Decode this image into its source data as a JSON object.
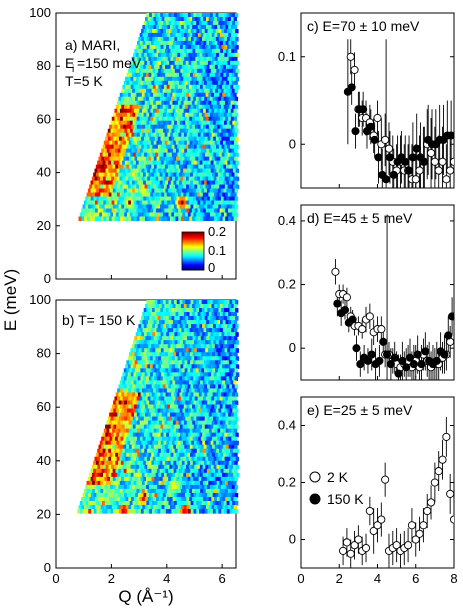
{
  "figure": {
    "shared_ylabel": "E (meV)",
    "shared_xlabel": "Q (Å⁻¹)"
  },
  "chart_data": [
    {
      "id": "a",
      "type": "heatmap",
      "annotations": [
        "a) MARI,",
        "E",
        "i",
        "=150 meV",
        "T=5 K"
      ],
      "xlim": [
        0,
        6.5
      ],
      "ylim": [
        0,
        100
      ],
      "x_ticks": [
        "0",
        "2",
        "4",
        "6"
      ],
      "y_ticks": [
        "0",
        "20",
        "40",
        "60",
        "80",
        "100"
      ],
      "colorbar": {
        "ticks": [
          "0.2",
          "0.1",
          "0"
        ],
        "range": [
          0,
          0.2
        ]
      },
      "colormap": "jet",
      "description_note": "",
      "hot_spots": [
        {
          "q": 1.5,
          "e": 48,
          "v": 0.2
        },
        {
          "q": 1.6,
          "e": 42,
          "v": 0.18
        },
        {
          "q": 2.2,
          "e": 55,
          "v": 0.15
        },
        {
          "q": 2.0,
          "e": 40,
          "v": 0.14
        },
        {
          "q": 3.1,
          "e": 33,
          "v": 0.14
        },
        {
          "q": 4.5,
          "e": 28,
          "v": 0.2
        },
        {
          "q": 1.2,
          "e": 24,
          "v": 0.12
        },
        {
          "q": 2.6,
          "e": 28,
          "v": 0.15
        }
      ]
    },
    {
      "id": "b",
      "type": "heatmap",
      "annotations": [
        "b) T= 150 K"
      ],
      "xlim": [
        0,
        6.5
      ],
      "ylim": [
        0,
        100
      ],
      "x_ticks": [
        "0",
        "2",
        "4",
        "6"
      ],
      "y_ticks": [
        "0",
        "20",
        "40",
        "60",
        "80",
        "100"
      ],
      "colormap": "jet",
      "hot_spots": [
        {
          "q": 1.4,
          "e": 45,
          "v": 0.16
        },
        {
          "q": 2.0,
          "e": 42,
          "v": 0.12
        },
        {
          "q": 2.4,
          "e": 21,
          "v": 0.2
        },
        {
          "q": 3.1,
          "e": 25,
          "v": 0.18
        },
        {
          "q": 4.6,
          "e": 21,
          "v": 0.2
        },
        {
          "q": 4.2,
          "e": 30,
          "v": 0.14
        },
        {
          "q": 1.6,
          "e": 25,
          "v": 0.13
        }
      ]
    },
    {
      "id": "c",
      "type": "scatter",
      "title": "c) E=70 ± 10 meV",
      "xlim": [
        0,
        8
      ],
      "ylim": [
        -0.05,
        0.15
      ],
      "y_ticks": [
        0,
        0.1
      ],
      "y_tick_labels": [
        "0",
        "0.1"
      ],
      "series": [
        {
          "marker": "open",
          "points": [
            [
              2.6,
              0.1
            ],
            [
              2.8,
              0.085
            ],
            [
              3.0,
              0.04
            ],
            [
              3.2,
              0.03
            ],
            [
              3.4,
              0.03
            ],
            [
              3.6,
              0.025
            ],
            [
              3.8,
              0.01
            ],
            [
              4.0,
              0.03
            ],
            [
              4.2,
              0.0
            ],
            [
              4.4,
              0.005
            ],
            [
              4.6,
              -0.005
            ],
            [
              4.8,
              -0.02
            ],
            [
              5.0,
              -0.03
            ],
            [
              5.2,
              -0.02
            ],
            [
              5.4,
              -0.03
            ],
            [
              5.6,
              -0.03
            ],
            [
              5.8,
              -0.04
            ],
            [
              6.0,
              -0.04
            ],
            [
              6.2,
              -0.03
            ],
            [
              6.4,
              -0.02
            ],
            [
              6.6,
              0.0
            ],
            [
              6.8,
              -0.01
            ],
            [
              7.0,
              -0.02
            ],
            [
              7.2,
              -0.03
            ],
            [
              7.4,
              -0.02
            ],
            [
              7.6,
              -0.04
            ],
            [
              7.8,
              -0.03
            ],
            [
              8.0,
              -0.02
            ]
          ],
          "err": [
            0.02,
            0.02,
            0.02,
            0.02,
            0.02,
            0.02,
            0.02,
            0.02,
            0.03,
            0.03,
            0.03,
            0.03,
            0.03,
            0.03,
            0.03,
            0.03,
            0.04,
            0.04,
            0.04,
            0.04,
            0.04,
            0.04,
            0.04,
            0.04,
            0.04,
            0.04,
            0.04,
            0.04
          ]
        },
        {
          "marker": "filled",
          "points": [
            [
              2.45,
              0.06
            ],
            [
              2.65,
              0.065
            ],
            [
              2.85,
              0.015
            ],
            [
              3.05,
              0.04
            ],
            [
              3.25,
              0.04
            ],
            [
              3.45,
              0.015
            ],
            [
              3.65,
              0.02
            ],
            [
              3.85,
              0.005
            ],
            [
              4.05,
              -0.015
            ],
            [
              4.25,
              -0.035
            ],
            [
              4.45,
              -0.04
            ],
            [
              4.65,
              -0.015
            ],
            [
              4.85,
              -0.035
            ],
            [
              5.05,
              -0.02
            ],
            [
              5.25,
              -0.015
            ],
            [
              5.45,
              -0.02
            ],
            [
              5.65,
              -0.03
            ],
            [
              5.85,
              -0.015
            ],
            [
              6.05,
              -0.005
            ],
            [
              6.25,
              -0.015
            ],
            [
              6.45,
              -0.02
            ],
            [
              6.65,
              0.005
            ],
            [
              6.85,
              0.0
            ],
            [
              7.05,
              0.0
            ],
            [
              7.25,
              0.005
            ],
            [
              7.45,
              0.005
            ],
            [
              7.65,
              0.01
            ],
            [
              7.85,
              0.01
            ]
          ],
          "err": [
            0.06,
            0.02,
            0.02,
            0.02,
            0.02,
            0.02,
            0.02,
            0.02,
            0.03,
            0.03,
            0.16,
            0.03,
            0.03,
            0.03,
            0.03,
            0.03,
            0.04,
            0.04,
            0.04,
            0.04,
            0.04,
            0.04,
            0.04,
            0.04,
            0.04,
            0.04,
            0.04,
            0.04
          ]
        }
      ]
    },
    {
      "id": "d",
      "type": "scatter",
      "title": "d) E=45 ± 5 meV",
      "xlim": [
        0,
        8
      ],
      "ylim": [
        -0.1,
        0.45
      ],
      "y_ticks": [
        0,
        0.2,
        0.4
      ],
      "y_tick_labels": [
        "0",
        "0.2",
        "0.4"
      ],
      "series": [
        {
          "marker": "open",
          "points": [
            [
              1.8,
              0.24
            ],
            [
              2.0,
              0.17
            ],
            [
              2.2,
              0.17
            ],
            [
              2.4,
              0.16
            ],
            [
              2.6,
              0.1
            ],
            [
              2.8,
              0.07
            ],
            [
              3.0,
              0.07
            ],
            [
              3.2,
              0.06
            ],
            [
              3.4,
              0.09
            ],
            [
              3.6,
              0.1
            ],
            [
              3.8,
              0.05
            ],
            [
              4.0,
              0.06
            ],
            [
              4.2,
              0.06
            ],
            [
              4.4,
              -0.02
            ],
            [
              4.6,
              -0.02
            ],
            [
              4.8,
              -0.04
            ],
            [
              5.0,
              -0.05
            ],
            [
              5.2,
              -0.06
            ],
            [
              5.4,
              -0.05
            ],
            [
              5.6,
              -0.04
            ],
            [
              5.8,
              -0.06
            ],
            [
              6.0,
              -0.04
            ],
            [
              6.2,
              -0.06
            ],
            [
              6.4,
              -0.02
            ],
            [
              6.6,
              -0.04
            ],
            [
              6.8,
              -0.06
            ],
            [
              7.0,
              -0.05
            ],
            [
              7.2,
              -0.05
            ],
            [
              7.4,
              -0.03
            ],
            [
              7.6,
              -0.02
            ],
            [
              7.8,
              0.02
            ]
          ],
          "err": [
            0.04,
            0.03,
            0.03,
            0.03,
            0.03,
            0.03,
            0.03,
            0.03,
            0.04,
            0.04,
            0.04,
            0.04,
            0.04,
            0.04,
            0.04,
            0.04,
            0.04,
            0.04,
            0.04,
            0.05,
            0.05,
            0.05,
            0.05,
            0.05,
            0.05,
            0.05,
            0.05,
            0.05,
            0.05,
            0.05,
            0.05
          ]
        },
        {
          "marker": "filled",
          "points": [
            [
              1.9,
              0.14
            ],
            [
              2.1,
              0.11
            ],
            [
              2.3,
              0.12
            ],
            [
              2.5,
              0.08
            ],
            [
              2.7,
              0.09
            ],
            [
              2.9,
              0.0
            ],
            [
              3.1,
              -0.05
            ],
            [
              3.3,
              -0.03
            ],
            [
              3.5,
              -0.04
            ],
            [
              3.7,
              -0.02
            ],
            [
              3.9,
              -0.05
            ],
            [
              4.1,
              -0.04
            ],
            [
              4.3,
              0.02
            ],
            [
              4.5,
              -0.02
            ],
            [
              4.7,
              -0.05
            ],
            [
              4.9,
              -0.03
            ],
            [
              5.1,
              -0.08
            ],
            [
              5.3,
              -0.04
            ],
            [
              5.5,
              -0.06
            ],
            [
              5.7,
              -0.03
            ],
            [
              5.9,
              -0.05
            ],
            [
              6.1,
              -0.02
            ],
            [
              6.3,
              -0.05
            ],
            [
              6.5,
              -0.01
            ],
            [
              6.7,
              -0.04
            ],
            [
              6.9,
              -0.05
            ],
            [
              7.1,
              -0.04
            ],
            [
              7.3,
              -0.01
            ],
            [
              7.5,
              -0.02
            ],
            [
              7.7,
              0.04
            ],
            [
              7.9,
              0.1
            ]
          ],
          "err": [
            0.04,
            0.04,
            0.03,
            0.03,
            0.03,
            0.04,
            0.04,
            0.04,
            0.04,
            0.05,
            0.05,
            0.05,
            0.05,
            0.44,
            0.05,
            0.05,
            0.06,
            0.06,
            0.06,
            0.06,
            0.06,
            0.06,
            0.06,
            0.06,
            0.06,
            0.06,
            0.06,
            0.06,
            0.06,
            0.06,
            0.06
          ]
        }
      ]
    },
    {
      "id": "e",
      "type": "scatter",
      "title": "e) E=25 ± 5 meV",
      "xlim": [
        0,
        8
      ],
      "ylim": [
        -0.1,
        0.5
      ],
      "x_ticks": [
        0,
        2,
        4,
        6,
        8
      ],
      "x_tick_labels": [
        "0",
        "2",
        "4",
        "6",
        "8"
      ],
      "y_ticks": [
        0,
        0.2,
        0.4
      ],
      "y_tick_labels": [
        "0",
        "0.2",
        "0.4"
      ],
      "legend": [
        {
          "marker": "open",
          "label": "2 K"
        },
        {
          "marker": "filled",
          "label": "150 K"
        }
      ],
      "legend_position": "middle-left",
      "series": [
        {
          "marker": "open",
          "points": [
            [
              2.2,
              -0.04
            ],
            [
              2.4,
              -0.01
            ],
            [
              2.6,
              -0.05
            ],
            [
              2.8,
              -0.02
            ],
            [
              3.0,
              0.0
            ],
            [
              3.2,
              -0.04
            ],
            [
              3.4,
              -0.03
            ],
            [
              3.6,
              0.1
            ],
            [
              3.8,
              0.03
            ],
            [
              4.0,
              0.05
            ],
            [
              4.2,
              0.07
            ],
            [
              4.4,
              0.21
            ],
            [
              4.6,
              -0.04
            ],
            [
              4.8,
              -0.03
            ],
            [
              5.0,
              -0.02
            ],
            [
              5.2,
              -0.04
            ],
            [
              5.4,
              -0.03
            ],
            [
              5.6,
              -0.02
            ],
            [
              5.8,
              0.05
            ],
            [
              6.0,
              0.0
            ],
            [
              6.2,
              0.02
            ],
            [
              6.4,
              0.05
            ],
            [
              6.6,
              0.1
            ],
            [
              6.8,
              0.13
            ],
            [
              7.0,
              0.2
            ],
            [
              7.2,
              0.24
            ],
            [
              7.4,
              0.28
            ],
            [
              7.6,
              0.36
            ],
            [
              7.8,
              0.16
            ],
            [
              8.0,
              0.07
            ]
          ],
          "err": [
            0.05,
            0.05,
            0.05,
            0.05,
            0.05,
            0.05,
            0.05,
            0.05,
            0.08,
            0.06,
            0.06,
            0.06,
            0.06,
            0.06,
            0.06,
            0.06,
            0.06,
            0.06,
            0.06,
            0.06,
            0.06,
            0.06,
            0.06,
            0.06,
            0.07,
            0.07,
            0.07,
            0.07,
            0.07,
            0.07
          ]
        }
      ]
    }
  ]
}
